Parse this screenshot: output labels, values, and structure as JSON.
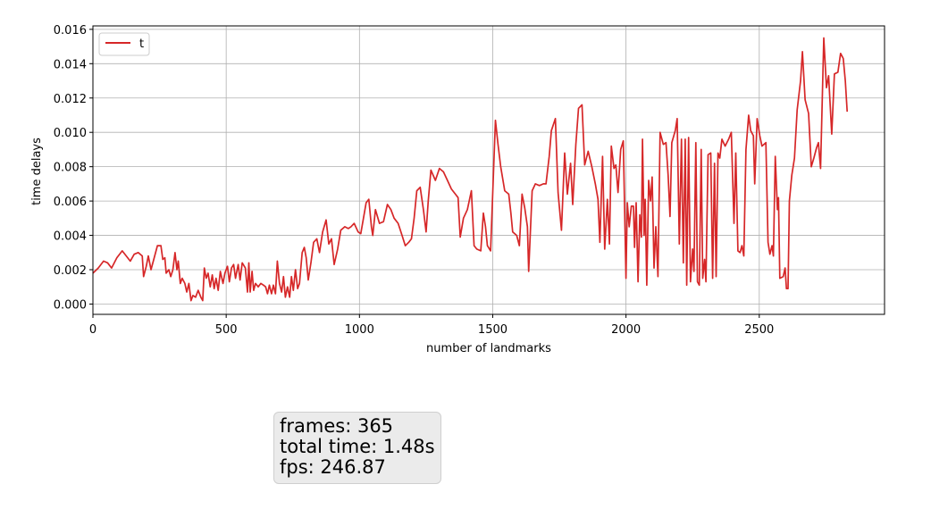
{
  "chart_data": {
    "type": "line",
    "title": "",
    "xlabel": "number of landmarks",
    "ylabel": "time delays",
    "xlim": [
      0,
      2970
    ],
    "ylim": [
      -0.0006,
      0.0162
    ],
    "xticks": [
      0,
      500,
      1000,
      1500,
      2000,
      2500
    ],
    "yticks": [
      0.0,
      0.002,
      0.004,
      0.006,
      0.008,
      0.01,
      0.012,
      0.014,
      0.016
    ],
    "xtick_labels": [
      "0",
      "500",
      "1000",
      "1500",
      "2000",
      "2500"
    ],
    "ytick_labels": [
      "0.000",
      "0.002",
      "0.004",
      "0.006",
      "0.008",
      "0.010",
      "0.012",
      "0.014",
      "0.016"
    ],
    "grid": true,
    "legend_position": "top-left",
    "series": [
      {
        "name": "t",
        "color": "#d62728",
        "points": [
          [
            0,
            0.0018
          ],
          [
            20,
            0.0021
          ],
          [
            40,
            0.0025
          ],
          [
            55,
            0.0024
          ],
          [
            70,
            0.0021
          ],
          [
            90,
            0.0027
          ],
          [
            110,
            0.0031
          ],
          [
            125,
            0.0028
          ],
          [
            140,
            0.0025
          ],
          [
            155,
            0.0029
          ],
          [
            170,
            0.003
          ],
          [
            185,
            0.0028
          ],
          [
            190,
            0.0016
          ],
          [
            200,
            0.0022
          ],
          [
            208,
            0.0028
          ],
          [
            218,
            0.002
          ],
          [
            230,
            0.0027
          ],
          [
            242,
            0.0034
          ],
          [
            255,
            0.0034
          ],
          [
            262,
            0.0026
          ],
          [
            270,
            0.0027
          ],
          [
            275,
            0.0018
          ],
          [
            285,
            0.002
          ],
          [
            292,
            0.0016
          ],
          [
            300,
            0.002
          ],
          [
            308,
            0.003
          ],
          [
            315,
            0.002
          ],
          [
            320,
            0.0025
          ],
          [
            328,
            0.0012
          ],
          [
            335,
            0.0015
          ],
          [
            345,
            0.0012
          ],
          [
            352,
            0.0007
          ],
          [
            360,
            0.0012
          ],
          [
            368,
            0.0002
          ],
          [
            375,
            0.0005
          ],
          [
            385,
            0.0004
          ],
          [
            395,
            0.0008
          ],
          [
            405,
            0.0004
          ],
          [
            412,
            0.0002
          ],
          [
            418,
            0.0021
          ],
          [
            425,
            0.0015
          ],
          [
            432,
            0.0018
          ],
          [
            440,
            0.001
          ],
          [
            448,
            0.0017
          ],
          [
            455,
            0.0009
          ],
          [
            462,
            0.0015
          ],
          [
            470,
            0.0008
          ],
          [
            478,
            0.0019
          ],
          [
            488,
            0.0012
          ],
          [
            495,
            0.0018
          ],
          [
            505,
            0.0022
          ],
          [
            512,
            0.0013
          ],
          [
            520,
            0.0021
          ],
          [
            528,
            0.0023
          ],
          [
            535,
            0.0015
          ],
          [
            545,
            0.0023
          ],
          [
            552,
            0.0014
          ],
          [
            560,
            0.0024
          ],
          [
            572,
            0.0021
          ],
          [
            580,
            0.0007
          ],
          [
            585,
            0.0024
          ],
          [
            590,
            0.0007
          ],
          [
            597,
            0.0019
          ],
          [
            603,
            0.0008
          ],
          [
            610,
            0.0012
          ],
          [
            620,
            0.001
          ],
          [
            630,
            0.0012
          ],
          [
            640,
            0.0011
          ],
          [
            648,
            0.001
          ],
          [
            655,
            0.0006
          ],
          [
            662,
            0.0011
          ],
          [
            670,
            0.0006
          ],
          [
            677,
            0.0011
          ],
          [
            685,
            0.0006
          ],
          [
            692,
            0.0025
          ],
          [
            700,
            0.0012
          ],
          [
            708,
            0.0007
          ],
          [
            715,
            0.0016
          ],
          [
            722,
            0.0004
          ],
          [
            730,
            0.001
          ],
          [
            738,
            0.0004
          ],
          [
            745,
            0.0016
          ],
          [
            752,
            0.0008
          ],
          [
            760,
            0.002
          ],
          [
            768,
            0.0009
          ],
          [
            775,
            0.0012
          ],
          [
            785,
            0.003
          ],
          [
            793,
            0.0033
          ],
          [
            800,
            0.0027
          ],
          [
            808,
            0.0014
          ],
          [
            818,
            0.0024
          ],
          [
            828,
            0.0036
          ],
          [
            840,
            0.0038
          ],
          [
            850,
            0.003
          ],
          [
            862,
            0.0042
          ],
          [
            875,
            0.0049
          ],
          [
            885,
            0.0035
          ],
          [
            895,
            0.0038
          ],
          [
            905,
            0.0023
          ],
          [
            918,
            0.0032
          ],
          [
            930,
            0.0043
          ],
          [
            945,
            0.0045
          ],
          [
            958,
            0.0044
          ],
          [
            968,
            0.0045
          ],
          [
            980,
            0.0047
          ],
          [
            995,
            0.0042
          ],
          [
            1005,
            0.0041
          ],
          [
            1015,
            0.005
          ],
          [
            1025,
            0.0059
          ],
          [
            1035,
            0.0061
          ],
          [
            1045,
            0.0045
          ],
          [
            1050,
            0.004
          ],
          [
            1060,
            0.0055
          ],
          [
            1075,
            0.0047
          ],
          [
            1090,
            0.0048
          ],
          [
            1105,
            0.0058
          ],
          [
            1118,
            0.0055
          ],
          [
            1130,
            0.005
          ],
          [
            1145,
            0.0047
          ],
          [
            1160,
            0.004
          ],
          [
            1172,
            0.0034
          ],
          [
            1185,
            0.0036
          ],
          [
            1195,
            0.0038
          ],
          [
            1205,
            0.005
          ],
          [
            1215,
            0.0066
          ],
          [
            1228,
            0.0068
          ],
          [
            1240,
            0.0055
          ],
          [
            1250,
            0.0042
          ],
          [
            1258,
            0.006
          ],
          [
            1268,
            0.0078
          ],
          [
            1285,
            0.0072
          ],
          [
            1300,
            0.0079
          ],
          [
            1315,
            0.0077
          ],
          [
            1330,
            0.0072
          ],
          [
            1345,
            0.0067
          ],
          [
            1360,
            0.0064
          ],
          [
            1370,
            0.0062
          ],
          [
            1378,
            0.0039
          ],
          [
            1390,
            0.005
          ],
          [
            1405,
            0.0055
          ],
          [
            1420,
            0.0066
          ],
          [
            1430,
            0.0034
          ],
          [
            1440,
            0.0032
          ],
          [
            1455,
            0.0031
          ],
          [
            1465,
            0.0053
          ],
          [
            1473,
            0.0045
          ],
          [
            1480,
            0.0034
          ],
          [
            1492,
            0.0031
          ],
          [
            1500,
            0.0065
          ],
          [
            1510,
            0.0107
          ],
          [
            1520,
            0.0093
          ],
          [
            1530,
            0.008
          ],
          [
            1545,
            0.0066
          ],
          [
            1560,
            0.0064
          ],
          [
            1568,
            0.0053
          ],
          [
            1575,
            0.0042
          ],
          [
            1590,
            0.004
          ],
          [
            1600,
            0.0034
          ],
          [
            1610,
            0.0064
          ],
          [
            1620,
            0.0056
          ],
          [
            1630,
            0.0045
          ],
          [
            1635,
            0.0019
          ],
          [
            1648,
            0.0066
          ],
          [
            1660,
            0.007
          ],
          [
            1675,
            0.0069
          ],
          [
            1690,
            0.007
          ],
          [
            1700,
            0.007
          ],
          [
            1712,
            0.0086
          ],
          [
            1720,
            0.0101
          ],
          [
            1735,
            0.0108
          ],
          [
            1745,
            0.0065
          ],
          [
            1758,
            0.0043
          ],
          [
            1770,
            0.0088
          ],
          [
            1780,
            0.0064
          ],
          [
            1792,
            0.0082
          ],
          [
            1800,
            0.0058
          ],
          [
            1812,
            0.0093
          ],
          [
            1822,
            0.0114
          ],
          [
            1835,
            0.0116
          ],
          [
            1845,
            0.0081
          ],
          [
            1858,
            0.0089
          ],
          [
            1872,
            0.008
          ],
          [
            1885,
            0.007
          ],
          [
            1895,
            0.0061
          ],
          [
            1902,
            0.0036
          ],
          [
            1912,
            0.0086
          ],
          [
            1920,
            0.0032
          ],
          [
            1930,
            0.0061
          ],
          [
            1938,
            0.0035
          ],
          [
            1945,
            0.0092
          ],
          [
            1955,
            0.0079
          ],
          [
            1962,
            0.0081
          ],
          [
            1970,
            0.0065
          ],
          [
            1980,
            0.009
          ],
          [
            1990,
            0.0095
          ],
          [
            2000,
            0.0015
          ],
          [
            2005,
            0.0059
          ],
          [
            2012,
            0.0045
          ],
          [
            2020,
            0.0057
          ],
          [
            2028,
            0.0057
          ],
          [
            2032,
            0.0033
          ],
          [
            2038,
            0.0059
          ],
          [
            2045,
            0.0013
          ],
          [
            2052,
            0.0052
          ],
          [
            2058,
            0.0039
          ],
          [
            2062,
            0.0096
          ],
          [
            2068,
            0.004
          ],
          [
            2072,
            0.0061
          ],
          [
            2078,
            0.0011
          ],
          [
            2085,
            0.0072
          ],
          [
            2092,
            0.006
          ],
          [
            2098,
            0.0074
          ],
          [
            2105,
            0.0021
          ],
          [
            2112,
            0.0045
          ],
          [
            2120,
            0.0016
          ],
          [
            2128,
            0.01
          ],
          [
            2140,
            0.0093
          ],
          [
            2150,
            0.0094
          ],
          [
            2158,
            0.0075
          ],
          [
            2165,
            0.0051
          ],
          [
            2172,
            0.0094
          ],
          [
            2185,
            0.0101
          ],
          [
            2192,
            0.0108
          ],
          [
            2200,
            0.0035
          ],
          [
            2208,
            0.0096
          ],
          [
            2215,
            0.0024
          ],
          [
            2222,
            0.0096
          ],
          [
            2228,
            0.0011
          ],
          [
            2235,
            0.0097
          ],
          [
            2242,
            0.0013
          ],
          [
            2250,
            0.0032
          ],
          [
            2255,
            0.0019
          ],
          [
            2262,
            0.0094
          ],
          [
            2268,
            0.0013
          ],
          [
            2275,
            0.0011
          ],
          [
            2282,
            0.009
          ],
          [
            2288,
            0.0015
          ],
          [
            2295,
            0.0026
          ],
          [
            2300,
            0.0013
          ],
          [
            2308,
            0.0087
          ],
          [
            2318,
            0.0088
          ],
          [
            2325,
            0.0015
          ],
          [
            2332,
            0.0082
          ],
          [
            2338,
            0.0016
          ],
          [
            2345,
            0.0088
          ],
          [
            2352,
            0.0085
          ],
          [
            2360,
            0.0096
          ],
          [
            2372,
            0.0092
          ],
          [
            2385,
            0.0096
          ],
          [
            2395,
            0.01
          ],
          [
            2405,
            0.0047
          ],
          [
            2412,
            0.0088
          ],
          [
            2420,
            0.0031
          ],
          [
            2428,
            0.003
          ],
          [
            2435,
            0.0034
          ],
          [
            2442,
            0.0028
          ],
          [
            2450,
            0.009
          ],
          [
            2460,
            0.011
          ],
          [
            2468,
            0.0101
          ],
          [
            2478,
            0.0098
          ],
          [
            2483,
            0.007
          ],
          [
            2492,
            0.0108
          ],
          [
            2502,
            0.0098
          ],
          [
            2510,
            0.0092
          ],
          [
            2525,
            0.0094
          ],
          [
            2533,
            0.0036
          ],
          [
            2540,
            0.0029
          ],
          [
            2548,
            0.0034
          ],
          [
            2553,
            0.0028
          ],
          [
            2560,
            0.0086
          ],
          [
            2568,
            0.0055
          ],
          [
            2572,
            0.0062
          ],
          [
            2577,
            0.0015
          ],
          [
            2590,
            0.0016
          ],
          [
            2597,
            0.0021
          ],
          [
            2602,
            0.0009
          ],
          [
            2608,
            0.0009
          ],
          [
            2613,
            0.006
          ],
          [
            2622,
            0.0075
          ],
          [
            2632,
            0.0085
          ],
          [
            2642,
            0.0113
          ],
          [
            2655,
            0.013
          ],
          [
            2662,
            0.0147
          ],
          [
            2672,
            0.0119
          ],
          [
            2685,
            0.0111
          ],
          [
            2695,
            0.008
          ],
          [
            2705,
            0.0085
          ],
          [
            2715,
            0.0091
          ],
          [
            2722,
            0.0094
          ],
          [
            2730,
            0.0079
          ],
          [
            2742,
            0.0155
          ],
          [
            2752,
            0.0126
          ],
          [
            2760,
            0.0133
          ],
          [
            2772,
            0.0099
          ],
          [
            2782,
            0.0134
          ],
          [
            2795,
            0.0135
          ],
          [
            2805,
            0.0146
          ],
          [
            2815,
            0.0143
          ],
          [
            2823,
            0.013
          ],
          [
            2830,
            0.0112
          ]
        ]
      }
    ]
  },
  "stats_box": {
    "line1": "frames: 365",
    "line2": "total time: 1.48s",
    "line3": "fps: 246.87"
  }
}
